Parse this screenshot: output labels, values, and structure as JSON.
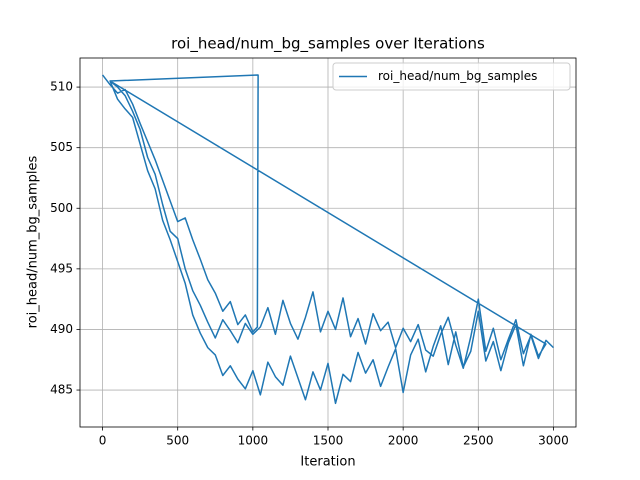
{
  "chart_data": {
    "type": "line",
    "title": "roi_head/num_bg_samples over Iterations",
    "x_label": "Iteration",
    "y_label": "roi_head/num_bg_samples",
    "xlim": [
      -150,
      3150
    ],
    "ylim": [
      481.95,
      512.4
    ],
    "xticks": [
      0,
      500,
      1000,
      1500,
      2000,
      2500,
      3000
    ],
    "yticks": [
      485,
      490,
      495,
      500,
      505,
      510
    ],
    "grid": true,
    "legend": "upper right",
    "series": [
      {
        "name": "roi_head/num_bg_samples",
        "color": "#1f77b4",
        "x": [
          0,
          50,
          100,
          150,
          200,
          250,
          300,
          350,
          400,
          450,
          500,
          550,
          600,
          650,
          700,
          750,
          800,
          850,
          900,
          950,
          1000,
          1030,
          1035,
          50,
          100,
          150,
          200,
          250,
          300,
          350,
          400,
          450,
          500,
          550,
          600,
          650,
          700,
          750,
          800,
          850,
          900,
          950,
          1000,
          1050,
          1100,
          1150,
          1200,
          1250,
          1300,
          1350,
          1400,
          1450,
          1500,
          1550,
          1600,
          1650,
          1700,
          1750,
          1800,
          1850,
          1900,
          1950,
          2000,
          2050,
          2100,
          2150,
          2200,
          2250,
          2300,
          2350,
          2400,
          2450,
          2500,
          2550,
          2600,
          2650,
          2700,
          2750,
          2800,
          2850,
          2900,
          2950,
          50,
          100,
          150,
          200,
          250,
          300,
          350,
          400,
          450,
          500,
          550,
          600,
          650,
          700,
          750,
          800,
          850,
          900,
          950,
          1000,
          1050,
          1100,
          1150,
          1200,
          1250,
          1300,
          1350,
          1400,
          1450,
          1500,
          1550,
          1600,
          1650,
          1700,
          1750,
          1800,
          1850,
          1900,
          1950,
          2000,
          2050,
          2100,
          2150,
          2200,
          2250,
          2300,
          2350,
          2400,
          2450,
          2500,
          2550,
          2600,
          2650,
          2700,
          2750,
          2800,
          2850,
          2900,
          2950,
          3000
        ],
        "values": [
          511,
          510.2,
          509.5,
          509.8,
          508.6,
          507.0,
          505.5,
          504.0,
          502.3,
          500.6,
          498.9,
          499.2,
          497.4,
          495.8,
          494.1,
          493.0,
          491.5,
          492.3,
          490.4,
          491.2,
          489.8,
          490.2,
          511,
          510.5,
          509.0,
          508.2,
          507.5,
          505.3,
          503.1,
          501.6,
          499.0,
          497.4,
          495.6,
          493.8,
          491.2,
          489.7,
          488.5,
          487.9,
          486.2,
          487.0,
          485.9,
          485.1,
          486.6,
          484.6,
          487.3,
          486.1,
          485.4,
          487.8,
          486.0,
          484.2,
          486.5,
          485.0,
          487.2,
          483.9,
          486.3,
          485.7,
          488.1,
          486.4,
          487.5,
          485.3,
          486.9,
          488.4,
          484.8,
          487.9,
          489.2,
          486.5,
          488.6,
          490.3,
          487.1,
          489.8,
          486.9,
          488.2,
          491.5,
          487.4,
          489.0,
          486.6,
          488.9,
          490.4,
          487.0,
          489.6,
          487.8,
          488.8,
          510.5,
          510.0,
          509.3,
          508.0,
          506.5,
          504.2,
          502.8,
          500.3,
          498.1,
          497.5,
          495.0,
          493.2,
          492.0,
          490.6,
          489.3,
          490.8,
          489.9,
          488.9,
          490.5,
          489.6,
          490.2,
          491.8,
          489.6,
          492.4,
          490.5,
          489.2,
          491.0,
          493.1,
          489.8,
          491.5,
          490.0,
          492.6,
          489.4,
          490.9,
          488.8,
          491.3,
          489.9,
          490.6,
          488.5,
          490.1,
          489.0,
          490.4,
          488.3,
          487.8,
          489.6,
          491.0,
          488.7,
          486.8,
          489.4,
          492.5,
          488.2,
          490.1,
          487.5,
          489.2,
          490.8,
          488.0,
          489.5,
          487.6,
          489.1,
          488.5
        ]
      }
    ]
  }
}
